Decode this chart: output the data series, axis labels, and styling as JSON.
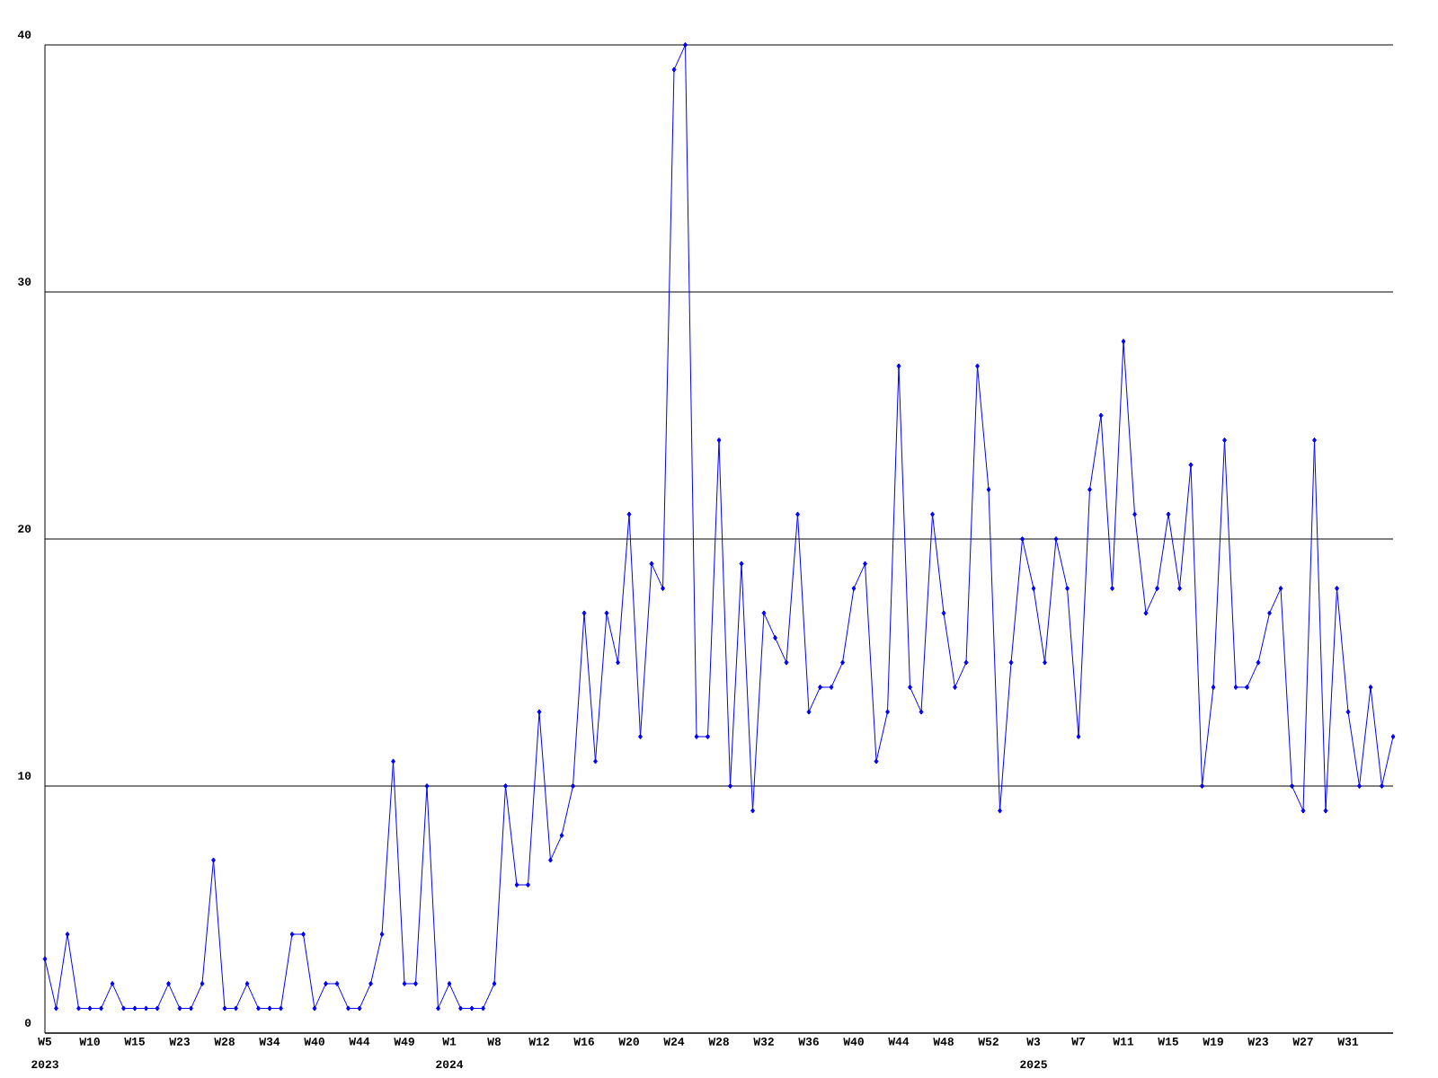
{
  "chart_data": {
    "type": "line",
    "categories": [
      "W5",
      null,
      null,
      null,
      "W10",
      null,
      null,
      null,
      "W15",
      null,
      null,
      null,
      "W23",
      null,
      null,
      null,
      "W28",
      null,
      null,
      null,
      "W34",
      null,
      null,
      null,
      "W40",
      null,
      null,
      null,
      "W44",
      null,
      null,
      null,
      "W49",
      null,
      null,
      null,
      "W1",
      null,
      null,
      null,
      "W8",
      null,
      null,
      null,
      "W12",
      null,
      null,
      null,
      "W16",
      null,
      null,
      null,
      "W20",
      null,
      null,
      null,
      "W24",
      null,
      null,
      null,
      "W28",
      null,
      null,
      null,
      "W32",
      null,
      null,
      null,
      "W36",
      null,
      null,
      null,
      "W40",
      null,
      null,
      null,
      "W44",
      null,
      null,
      null,
      "W48",
      null,
      null,
      null,
      "W52",
      null,
      null,
      null,
      "W3",
      null,
      null,
      null,
      "W7",
      null,
      null,
      null,
      "W11",
      null,
      null,
      null,
      "W15",
      null,
      null,
      null,
      "W19",
      null,
      null,
      null,
      "W23",
      null,
      null,
      null,
      "W27",
      null,
      null,
      null,
      "W31",
      null,
      null,
      null,
      null
    ],
    "series": [
      {
        "color": "#0000ff",
        "values": [
          3,
          1,
          4,
          1,
          1,
          1,
          2,
          1,
          1,
          1,
          1,
          2,
          1,
          1,
          2,
          7,
          1,
          1,
          2,
          1,
          1,
          1,
          4,
          4,
          1,
          2,
          2,
          1,
          1,
          2,
          4,
          11,
          2,
          2,
          10,
          1,
          2,
          1,
          1,
          1,
          2,
          10,
          6,
          6,
          13,
          7,
          8,
          10,
          17,
          11,
          17,
          15,
          21,
          12,
          19,
          18,
          39,
          40,
          12,
          12,
          24,
          10,
          19,
          9,
          17,
          16,
          15,
          21,
          13,
          14,
          14,
          15,
          18,
          19,
          11,
          13,
          27,
          14,
          13,
          21,
          17,
          14,
          15,
          27,
          22,
          9,
          15,
          20,
          18,
          15,
          20,
          18,
          12,
          22,
          25,
          18,
          28,
          21,
          17,
          18,
          21,
          18,
          23,
          10,
          14,
          24,
          14,
          14,
          15,
          17,
          18,
          10,
          9,
          24,
          9,
          18,
          13,
          10,
          14,
          10,
          12
        ]
      }
    ],
    "ylim": [
      0,
      40
    ],
    "yticks": [
      0,
      10,
      20,
      30,
      40
    ],
    "grid": "y",
    "marker": "diamond",
    "line_style": "solid",
    "annotations": [
      "2023",
      "2024",
      "2025"
    ]
  }
}
